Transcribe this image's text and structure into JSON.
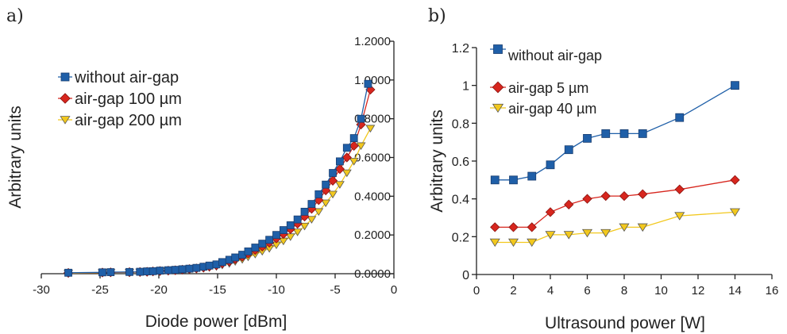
{
  "chart_data": [
    {
      "panel_label": "a)",
      "type": "scatter",
      "xlabel": "Diode power [dBm]",
      "ylabel": "Arbitrary units",
      "xlim": [
        -30,
        0
      ],
      "ylim": [
        0,
        1.2
      ],
      "x_ticks": [
        "-30",
        "-25",
        "-20",
        "-15",
        "-10",
        "-5",
        "0"
      ],
      "y_ticks": [
        "0.0000",
        "0.2000",
        "0.4000",
        "0.6000",
        "0.8000",
        "1.0000",
        "1.2000"
      ],
      "legend_position": "top-left",
      "series": [
        {
          "name": "without air-gap",
          "color": "#1f5fa8",
          "marker": "square",
          "x": [
            -27.7,
            -24.8,
            -24.1,
            -22.5,
            -21.6,
            -21.0,
            -20.5,
            -19.9,
            -19.2,
            -18.6,
            -18.0,
            -17.4,
            -16.8,
            -16.2,
            -15.7,
            -15.1,
            -14.6,
            -14.0,
            -13.5,
            -12.9,
            -12.4,
            -11.8,
            -11.2,
            -10.6,
            -10.0,
            -9.4,
            -8.8,
            -8.2,
            -7.6,
            -7.0,
            -6.4,
            -5.8,
            -5.2,
            -4.6,
            -4.0,
            -3.4,
            -2.8,
            -2.2
          ],
          "y": [
            0.005,
            0.007,
            0.008,
            0.009,
            0.01,
            0.012,
            0.013,
            0.016,
            0.018,
            0.02,
            0.023,
            0.026,
            0.03,
            0.036,
            0.042,
            0.048,
            0.06,
            0.072,
            0.084,
            0.098,
            0.115,
            0.135,
            0.155,
            0.175,
            0.2,
            0.225,
            0.25,
            0.28,
            0.32,
            0.36,
            0.41,
            0.46,
            0.52,
            0.58,
            0.65,
            0.7,
            0.8,
            0.98
          ]
        },
        {
          "name": "air-gap 100 µm",
          "color": "#d7261e",
          "marker": "diamond",
          "x": [
            -27.7,
            -24.8,
            -24.1,
            -22.5,
            -21.6,
            -21.0,
            -20.5,
            -19.9,
            -19.2,
            -18.6,
            -18.0,
            -17.4,
            -16.8,
            -16.2,
            -15.7,
            -15.1,
            -14.6,
            -14.0,
            -13.5,
            -12.9,
            -12.4,
            -11.8,
            -11.2,
            -10.6,
            -10.0,
            -9.4,
            -8.8,
            -8.2,
            -7.6,
            -7.0,
            -6.4,
            -5.8,
            -5.2,
            -4.6,
            -4.0,
            -3.4,
            -2.8,
            -2.0
          ],
          "y": [
            0.004,
            0.006,
            0.007,
            0.008,
            0.009,
            0.01,
            0.012,
            0.014,
            0.016,
            0.018,
            0.021,
            0.024,
            0.027,
            0.032,
            0.037,
            0.043,
            0.053,
            0.063,
            0.075,
            0.088,
            0.104,
            0.122,
            0.14,
            0.16,
            0.182,
            0.205,
            0.23,
            0.258,
            0.295,
            0.335,
            0.38,
            0.43,
            0.48,
            0.54,
            0.6,
            0.66,
            0.77,
            0.95
          ]
        },
        {
          "name": "air-gap 200 µm",
          "color": "#f2c81d",
          "marker": "triangle-down",
          "x": [
            -27.7,
            -24.8,
            -24.1,
            -22.5,
            -21.6,
            -21.0,
            -20.5,
            -19.9,
            -19.2,
            -18.6,
            -18.0,
            -17.4,
            -16.8,
            -16.2,
            -15.7,
            -15.1,
            -14.6,
            -14.0,
            -13.5,
            -12.9,
            -12.4,
            -11.8,
            -11.2,
            -10.6,
            -10.0,
            -9.4,
            -8.8,
            -8.2,
            -7.6,
            -7.0,
            -6.4,
            -5.8,
            -5.2,
            -4.6,
            -4.0,
            -3.4,
            -2.8,
            -2.0
          ],
          "y": [
            0.003,
            0.005,
            0.006,
            0.007,
            0.008,
            0.009,
            0.01,
            0.012,
            0.014,
            0.016,
            0.018,
            0.02,
            0.023,
            0.027,
            0.031,
            0.036,
            0.044,
            0.052,
            0.062,
            0.073,
            0.086,
            0.1,
            0.115,
            0.13,
            0.148,
            0.168,
            0.19,
            0.215,
            0.245,
            0.28,
            0.32,
            0.365,
            0.41,
            0.46,
            0.52,
            0.58,
            0.66,
            0.75
          ]
        }
      ]
    },
    {
      "panel_label": "b)",
      "type": "line",
      "xlabel": "Ultrasound power [W]",
      "ylabel": "Arbitrary units",
      "xlim": [
        0,
        16
      ],
      "ylim": [
        0,
        1.2
      ],
      "x_ticks": [
        "0",
        "2",
        "4",
        "6",
        "8",
        "10",
        "12",
        "14",
        "16"
      ],
      "y_ticks": [
        "0",
        "0.2",
        "0.4",
        "0.6",
        "0.8",
        "1",
        "1.2"
      ],
      "legend_position": "top-left",
      "x": [
        1,
        2,
        3,
        4,
        5,
        6,
        7,
        8,
        9,
        11,
        14
      ],
      "series": [
        {
          "name": "without air-gap",
          "color": "#1f5fa8",
          "marker": "square",
          "values": [
            0.5,
            0.5,
            0.52,
            0.58,
            0.66,
            0.72,
            0.745,
            0.745,
            0.745,
            0.83,
            1.0
          ]
        },
        {
          "name": "air-gap 5 µm",
          "color": "#d7261e",
          "marker": "diamond",
          "values": [
            0.25,
            0.25,
            0.25,
            0.33,
            0.37,
            0.4,
            0.415,
            0.415,
            0.425,
            0.45,
            0.5
          ]
        },
        {
          "name": "air-gap 40 µm",
          "color": "#f2c81d",
          "marker": "triangle-down",
          "values": [
            0.17,
            0.17,
            0.17,
            0.21,
            0.21,
            0.22,
            0.22,
            0.25,
            0.25,
            0.31,
            0.33
          ]
        }
      ]
    }
  ]
}
